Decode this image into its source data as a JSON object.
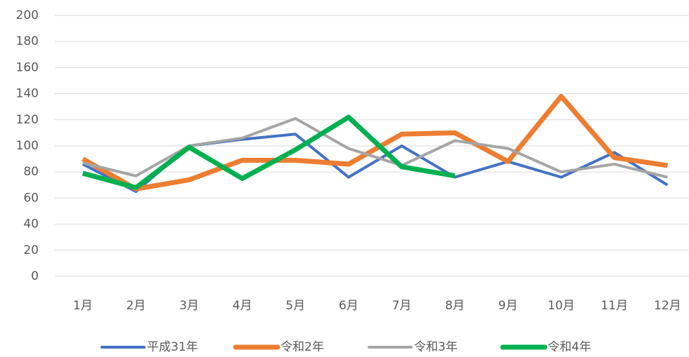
{
  "chart_data": {
    "type": "line",
    "categories": [
      "1月",
      "2月",
      "3月",
      "4月",
      "5月",
      "6月",
      "7月",
      "8月",
      "9月",
      "10月",
      "11月",
      "12月"
    ],
    "series": [
      {
        "name": "平成31年",
        "color": "#4472c4",
        "line_width": 4,
        "values": [
          86,
          65,
          100,
          105,
          109,
          76,
          100,
          76,
          88,
          76,
          95,
          70
        ]
      },
      {
        "name": "令和2年",
        "color": "#ed7d31",
        "line_width": 7,
        "values": [
          90,
          67,
          74,
          89,
          89,
          86,
          109,
          110,
          88,
          138,
          91,
          85
        ]
      },
      {
        "name": "令和3年",
        "color": "#a5a5a5",
        "line_width": 4,
        "values": [
          87,
          77,
          100,
          106,
          121,
          98,
          85,
          104,
          98,
          80,
          86,
          76
        ]
      },
      {
        "name": "令和4年",
        "color": "#00b050",
        "line_width": 7,
        "values": [
          79,
          68,
          99,
          75,
          97,
          122,
          84,
          77,
          null,
          null,
          null,
          null
        ]
      }
    ],
    "ylim": [
      0,
      200
    ],
    "yticks": [
      0,
      20,
      40,
      60,
      80,
      100,
      120,
      140,
      160,
      180,
      200
    ],
    "grid": true,
    "legend": "bottom"
  }
}
